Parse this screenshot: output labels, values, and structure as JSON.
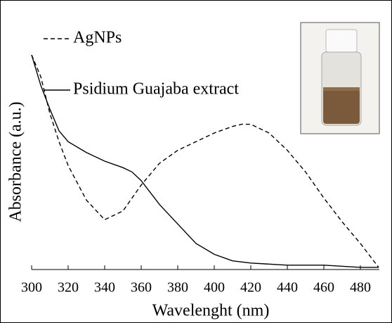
{
  "chart_data": {
    "type": "line",
    "xlabel": "Wavelenght (nm)",
    "ylabel": "Absorbance (a.u.)",
    "xlim": [
      300,
      490
    ],
    "xticks": [
      300,
      320,
      340,
      360,
      380,
      400,
      420,
      440,
      460,
      480
    ],
    "ylim": [
      0,
      1
    ],
    "legend": "upper left",
    "series": [
      {
        "name": "AgNPs",
        "color": "#000000",
        "linestyle": "dashed",
        "x": [
          300,
          305,
          310,
          315,
          320,
          330,
          340,
          350,
          360,
          370,
          380,
          390,
          400,
          410,
          415,
          420,
          430,
          440,
          450,
          460,
          470,
          480,
          490
        ],
        "values": [
          0.99,
          0.89,
          0.72,
          0.59,
          0.48,
          0.32,
          0.23,
          0.27,
          0.39,
          0.49,
          0.55,
          0.59,
          0.63,
          0.66,
          0.67,
          0.67,
          0.63,
          0.55,
          0.45,
          0.33,
          0.22,
          0.12,
          0.01
        ]
      },
      {
        "name": "Psidium Guajaba extract",
        "color": "#000000",
        "linestyle": "solid",
        "x": [
          300,
          305,
          310,
          315,
          320,
          330,
          340,
          350,
          355,
          360,
          370,
          380,
          390,
          400,
          410,
          420,
          440,
          460,
          480,
          490
        ],
        "values": [
          0.99,
          0.85,
          0.74,
          0.64,
          0.59,
          0.54,
          0.5,
          0.47,
          0.45,
          0.41,
          0.3,
          0.21,
          0.12,
          0.07,
          0.04,
          0.03,
          0.02,
          0.02,
          0.01,
          0.01
        ]
      }
    ]
  }
}
